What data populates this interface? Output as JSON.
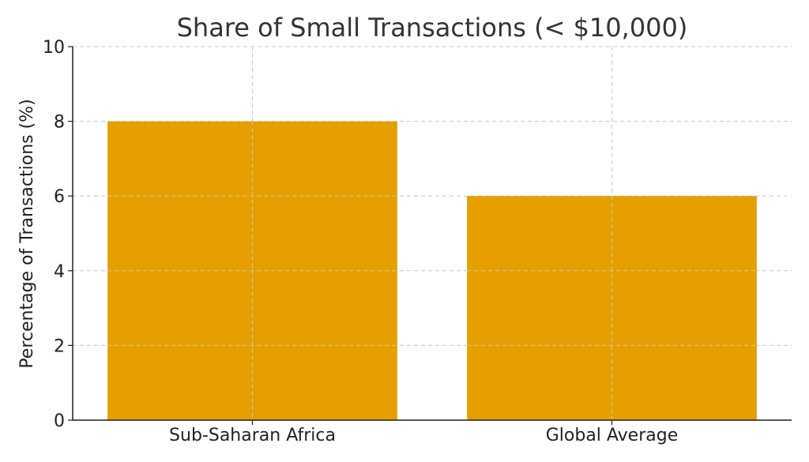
{
  "chart_data": {
    "type": "bar",
    "title": "Share of Small Transactions (< $10,000)",
    "xlabel": "",
    "ylabel": "Percentage of Transactions (%)",
    "categories": [
      "Sub-Saharan Africa",
      "Global Average"
    ],
    "values": [
      8,
      6
    ],
    "ylim": [
      0,
      10
    ],
    "yticks": [
      "0",
      "2",
      "4",
      "6",
      "8",
      "10"
    ],
    "grid": true,
    "bar_color": "#E5A000"
  }
}
